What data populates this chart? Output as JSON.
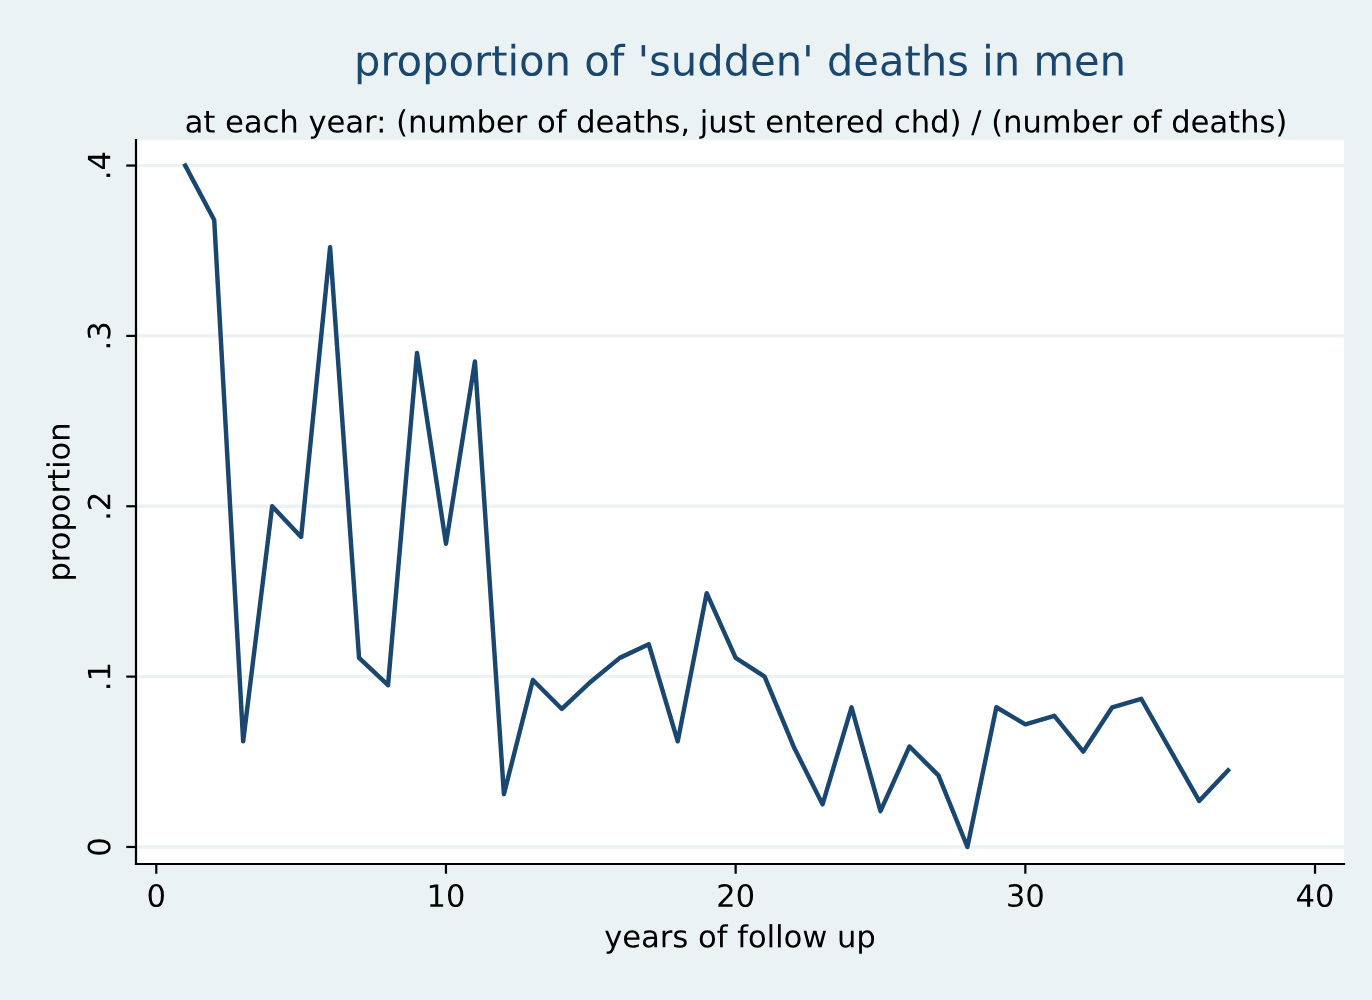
{
  "chart_data": {
    "type": "line",
    "title": "proportion of 'sudden' deaths in men",
    "subtitle": "at each year: (number of deaths, just entered chd) / (number of deaths)",
    "xlabel": "years of follow up",
    "ylabel": "proportion",
    "series": [
      {
        "color": "#1a476f",
        "x": [
          1,
          2,
          3,
          4,
          5,
          6,
          7,
          8,
          9,
          10,
          11,
          12,
          13,
          14,
          15,
          16,
          17,
          18,
          19,
          20,
          21,
          22,
          23,
          24,
          25,
          26,
          27,
          28,
          29,
          30,
          31,
          32,
          33,
          34,
          36,
          37
        ],
        "values": [
          0.4,
          0.368,
          0.062,
          0.2,
          0.182,
          0.352,
          0.111,
          0.095,
          0.29,
          0.178,
          0.285,
          0.031,
          0.098,
          0.081,
          0.097,
          0.111,
          0.119,
          0.062,
          0.149,
          0.111,
          0.1,
          0.059,
          0.025,
          0.082,
          0.021,
          0.059,
          0.042,
          0.0,
          0.082,
          0.072,
          0.077,
          0.056,
          0.082,
          0.087,
          0.027,
          0.045
        ]
      }
    ],
    "xlim": [
      -0.7,
      41
    ],
    "ylim": [
      -0.01,
      0.415
    ],
    "xticks": [
      0,
      10,
      20,
      30,
      40
    ],
    "yticks": [
      {
        "value": 0,
        "label": "0"
      },
      {
        "value": 0.1,
        "label": ".1"
      },
      {
        "value": 0.2,
        "label": ".2"
      },
      {
        "value": 0.3,
        "label": ".3"
      },
      {
        "value": 0.4,
        "label": ".4"
      }
    ],
    "grid": "y",
    "legend": false,
    "marker": "none",
    "line_style": "solid"
  }
}
